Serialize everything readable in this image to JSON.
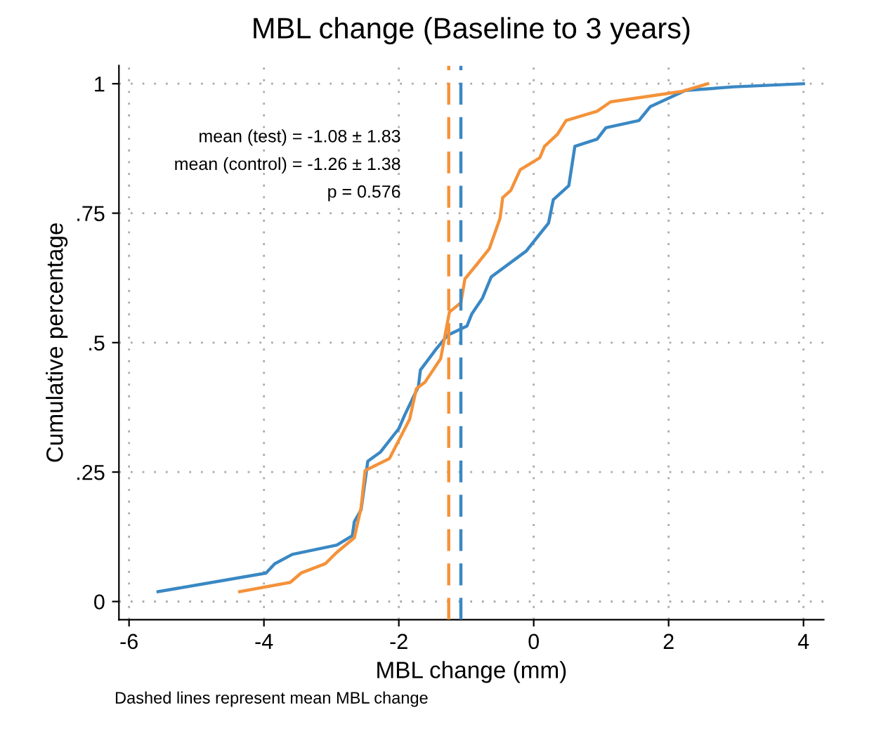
{
  "chart_data": {
    "type": "line",
    "title": "MBL change (Baseline to 3 years)",
    "xlabel": "MBL change (mm)",
    "ylabel": "Cumulative percentage",
    "annotations": [
      "mean (test) = -1.08 ± 1.83",
      "mean (control) = -1.26 ± 1.38",
      "p = 0.576",
      "Dashed lines represent mean MBL change"
    ],
    "series": [
      {
        "color": "#3a88c4",
        "x": [
          -5.57,
          -3.97,
          -3.84,
          -3.58,
          -2.92,
          -2.69,
          -2.66,
          -2.56,
          -2.46,
          -2.27,
          -2.0,
          -1.91,
          -1.71,
          -1.68,
          -1.45,
          -1.28,
          -0.99,
          -0.92,
          -0.76,
          -0.63,
          -0.11,
          0.22,
          0.29,
          0.52,
          0.61,
          0.94,
          1.07,
          1.56,
          1.73,
          2.25,
          2.97,
          4.0
        ],
        "values": [
          0.019,
          0.055,
          0.073,
          0.091,
          0.109,
          0.127,
          0.154,
          0.177,
          0.271,
          0.289,
          0.334,
          0.361,
          0.415,
          0.447,
          0.487,
          0.514,
          0.532,
          0.555,
          0.586,
          0.627,
          0.677,
          0.731,
          0.776,
          0.803,
          0.879,
          0.893,
          0.915,
          0.929,
          0.956,
          0.987,
          0.994,
          1.0
        ]
      },
      {
        "color": "#f4923a",
        "x": [
          -4.36,
          -3.61,
          -3.45,
          -3.09,
          -2.92,
          -2.66,
          -2.56,
          -2.5,
          -2.14,
          -1.84,
          -1.74,
          -1.61,
          -1.38,
          -1.25,
          -1.08,
          -1.02,
          -0.85,
          -0.66,
          -0.5,
          -0.46,
          -0.34,
          -0.2,
          0.09,
          0.16,
          0.35,
          0.48,
          0.94,
          1.14,
          2.19,
          2.58
        ],
        "values": [
          0.019,
          0.037,
          0.055,
          0.073,
          0.095,
          0.123,
          0.181,
          0.253,
          0.276,
          0.352,
          0.411,
          0.424,
          0.469,
          0.559,
          0.577,
          0.623,
          0.65,
          0.681,
          0.74,
          0.78,
          0.794,
          0.834,
          0.857,
          0.879,
          0.902,
          0.929,
          0.947,
          0.965,
          0.985,
          1.0
        ]
      }
    ],
    "ref_lines": [
      {
        "axis": "x",
        "value": -1.08,
        "color": "#3a88c4",
        "line_style": "dashed"
      },
      {
        "axis": "x",
        "value": -1.26,
        "color": "#f4923a",
        "line_style": "dashed"
      }
    ],
    "xlim": [
      -6.15,
      4.3
    ],
    "ylim": [
      -0.035,
      1.035
    ],
    "xticks": [
      -6,
      -4,
      -2,
      0,
      2,
      4
    ],
    "yticks": [
      0,
      {
        "value": 0.25,
        "label": ".25"
      },
      {
        "value": 0.5,
        "label": ".5"
      },
      {
        "value": 0.75,
        "label": ".75"
      },
      1
    ],
    "grid": true
  }
}
